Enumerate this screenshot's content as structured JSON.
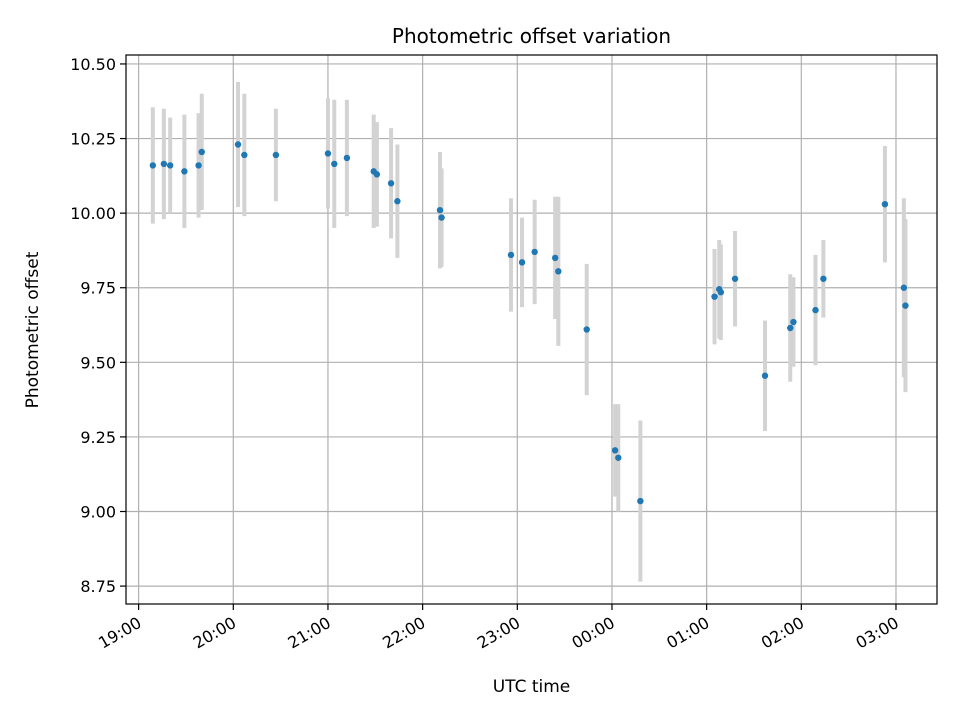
{
  "chart_data": {
    "type": "scatter",
    "title": "Photometric offset variation",
    "xlabel": "UTC time",
    "ylabel": "Photometric offset",
    "x_axis_type": "time",
    "x_start": "19:00",
    "xlim": [
      "18:52",
      "03:26"
    ],
    "ylim": [
      8.69,
      10.53
    ],
    "grid": true,
    "x_ticks": [
      "19:00",
      "20:00",
      "21:00",
      "22:00",
      "23:00",
      "00:00",
      "01:00",
      "02:00",
      "03:00"
    ],
    "y_ticks": [
      "10.50",
      "10.25",
      "10.00",
      "9.75",
      "9.50",
      "9.25",
      "9.00",
      "8.75"
    ],
    "marker_color": "#1f77b4",
    "errorbar_color": "#d3d3d3",
    "points": [
      {
        "t": "19:09",
        "y": 10.16,
        "err": 0.195
      },
      {
        "t": "19:16",
        "y": 10.165,
        "err": 0.185
      },
      {
        "t": "19:20",
        "y": 10.16,
        "err": 0.16
      },
      {
        "t": "19:29",
        "y": 10.14,
        "err": 0.19
      },
      {
        "t": "19:38",
        "y": 10.16,
        "err": 0.175
      },
      {
        "t": "19:40",
        "y": 10.205,
        "err": 0.195
      },
      {
        "t": "20:03",
        "y": 10.23,
        "err": 0.21
      },
      {
        "t": "20:07",
        "y": 10.195,
        "err": 0.205
      },
      {
        "t": "20:27",
        "y": 10.195,
        "err": 0.155
      },
      {
        "t": "21:00",
        "y": 10.2,
        "err": 0.185
      },
      {
        "t": "21:04",
        "y": 10.165,
        "err": 0.215
      },
      {
        "t": "21:12",
        "y": 10.185,
        "err": 0.195
      },
      {
        "t": "21:29",
        "y": 10.14,
        "err": 0.19
      },
      {
        "t": "21:31",
        "y": 10.13,
        "err": 0.175
      },
      {
        "t": "21:40",
        "y": 10.1,
        "err": 0.185
      },
      {
        "t": "21:44",
        "y": 10.04,
        "err": 0.19
      },
      {
        "t": "22:11",
        "y": 10.01,
        "err": 0.195
      },
      {
        "t": "22:12",
        "y": 9.985,
        "err": 0.165
      },
      {
        "t": "22:56",
        "y": 9.86,
        "err": 0.19
      },
      {
        "t": "23:03",
        "y": 9.835,
        "err": 0.15
      },
      {
        "t": "23:11",
        "y": 9.87,
        "err": 0.175
      },
      {
        "t": "23:24",
        "y": 9.85,
        "err": 0.205
      },
      {
        "t": "23:26",
        "y": 9.805,
        "err": 0.25
      },
      {
        "t": "23:44",
        "y": 9.61,
        "err": 0.22
      },
      {
        "t": "00:02",
        "y": 9.205,
        "err": 0.155
      },
      {
        "t": "00:04",
        "y": 9.18,
        "err": 0.18
      },
      {
        "t": "00:18",
        "y": 9.035,
        "err": 0.27
      },
      {
        "t": "01:05",
        "y": 9.72,
        "err": 0.16
      },
      {
        "t": "01:08",
        "y": 9.745,
        "err": 0.165
      },
      {
        "t": "01:09",
        "y": 9.735,
        "err": 0.16
      },
      {
        "t": "01:18",
        "y": 9.78,
        "err": 0.16
      },
      {
        "t": "01:37",
        "y": 9.455,
        "err": 0.185
      },
      {
        "t": "01:53",
        "y": 9.615,
        "err": 0.18
      },
      {
        "t": "01:55",
        "y": 9.635,
        "err": 0.15
      },
      {
        "t": "02:09",
        "y": 9.675,
        "err": 0.185
      },
      {
        "t": "02:14",
        "y": 9.78,
        "err": 0.13
      },
      {
        "t": "02:53",
        "y": 10.03,
        "err": 0.195
      },
      {
        "t": "03:05",
        "y": 9.75,
        "err": 0.3
      },
      {
        "t": "03:06",
        "y": 9.69,
        "err": 0.29
      }
    ]
  }
}
